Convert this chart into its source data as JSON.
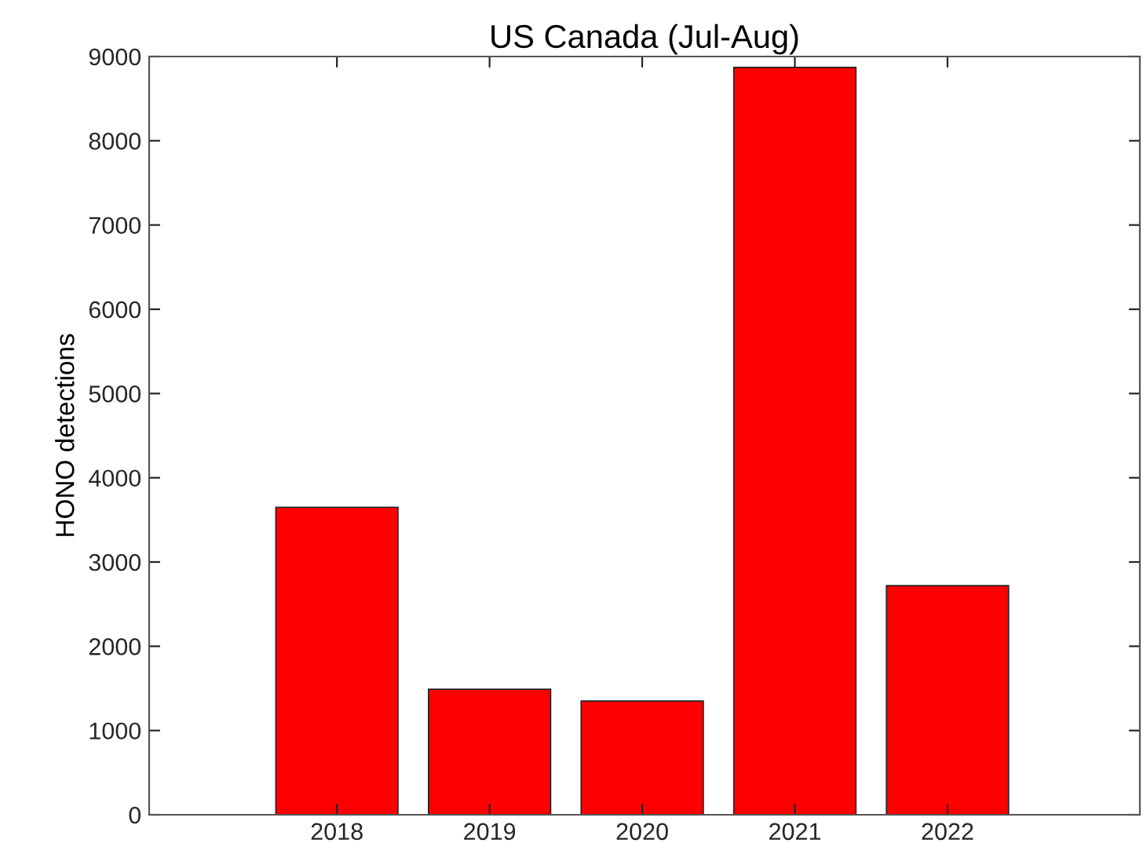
{
  "chart_data": {
    "type": "bar",
    "title": "US Canada (Jul-Aug)",
    "ylabel": "HONO detections",
    "categories": [
      "2018",
      "2019",
      "2020",
      "2021",
      "2022"
    ],
    "values": [
      3650,
      1490,
      1350,
      8870,
      2720
    ],
    "color": "#ff0000",
    "ylim": [
      0,
      9000
    ],
    "yticks": [
      0,
      1000,
      2000,
      3000,
      4000,
      5000,
      6000,
      7000,
      8000,
      9000
    ],
    "grid": false,
    "legend": false
  }
}
